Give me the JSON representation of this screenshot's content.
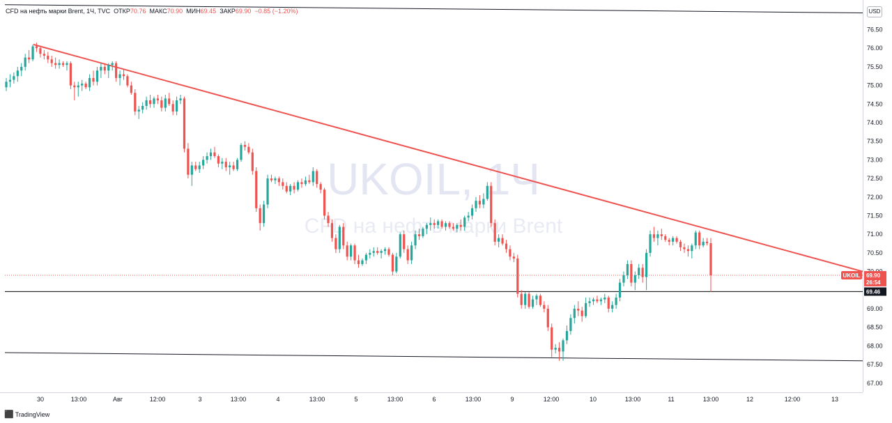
{
  "legend": {
    "title": "CFD на нефть марки Brent, 1Ч, TVC",
    "open_label": "ОТКР",
    "open": "70.76",
    "high_label": "МАКС",
    "high": "70.90",
    "low_label": "МИН",
    "low": "69.45",
    "close_label": "ЗАКР",
    "close": "69.90",
    "change": "−0.85 (−1.20%)"
  },
  "currency_button": "USD",
  "watermark": {
    "symbol": "UKOIL, 1Ч",
    "name": "CFD на нефть марки Brent"
  },
  "branding": "TradingView",
  "price_tags": {
    "symbol": "UKOIL",
    "last_price": "69.90",
    "countdown": "26:54",
    "level_price": "69.46"
  },
  "colors": {
    "up": "#26a69a",
    "down": "#ef5350",
    "trendline": "#ef5350",
    "level": "#000000"
  },
  "chart_data": {
    "type": "candlestick",
    "y_range": [
      66.7,
      77.1
    ],
    "y_ticks": [
      "76.50",
      "76.00",
      "75.50",
      "75.00",
      "74.50",
      "74.00",
      "73.50",
      "73.00",
      "72.50",
      "72.00",
      "71.50",
      "71.00",
      "70.50",
      "70.00",
      "69.50",
      "69.00",
      "68.50",
      "68.00",
      "67.50",
      "67.00"
    ],
    "x_ticks": [
      "30",
      "13:00",
      "Авг",
      "12:00",
      "3",
      "13:00",
      "4",
      "13:00",
      "5",
      "13:00",
      "6",
      "13:00",
      "9",
      "12:00",
      "10",
      "13:00",
      "11",
      "13:00",
      "12",
      "12:00",
      "13"
    ],
    "candles": [
      [
        74.95,
        75.2,
        74.85,
        75.1
      ],
      [
        75.1,
        75.3,
        74.95,
        75.15
      ],
      [
        75.15,
        75.35,
        75.05,
        75.25
      ],
      [
        75.25,
        75.5,
        75.1,
        75.4
      ],
      [
        75.4,
        75.6,
        75.25,
        75.5
      ],
      [
        75.5,
        75.85,
        75.4,
        75.75
      ],
      [
        75.75,
        75.95,
        75.6,
        75.7
      ],
      [
        75.7,
        76.1,
        75.65,
        76.05
      ],
      [
        76.05,
        76.15,
        75.9,
        76.0
      ],
      [
        76.0,
        76.05,
        75.75,
        75.85
      ],
      [
        75.85,
        75.95,
        75.7,
        75.8
      ],
      [
        75.8,
        75.9,
        75.6,
        75.7
      ],
      [
        75.7,
        75.8,
        75.5,
        75.6
      ],
      [
        75.6,
        75.75,
        75.45,
        75.55
      ],
      [
        75.55,
        75.7,
        75.45,
        75.6
      ],
      [
        75.6,
        75.65,
        75.5,
        75.55
      ],
      [
        75.55,
        75.65,
        75.4,
        75.6
      ],
      [
        75.6,
        75.65,
        74.9,
        75.0
      ],
      [
        75.0,
        75.1,
        74.6,
        74.95
      ],
      [
        74.95,
        75.1,
        74.7,
        75.0
      ],
      [
        75.0,
        75.15,
        74.85,
        75.05
      ],
      [
        75.05,
        75.1,
        74.9,
        74.95
      ],
      [
        74.95,
        75.3,
        74.85,
        75.2
      ],
      [
        75.2,
        75.4,
        75.0,
        75.1
      ],
      [
        75.1,
        75.5,
        75.0,
        75.4
      ],
      [
        75.4,
        75.6,
        75.2,
        75.5
      ],
      [
        75.5,
        75.6,
        75.3,
        75.4
      ],
      [
        75.4,
        75.6,
        75.2,
        75.55
      ],
      [
        75.55,
        75.65,
        75.4,
        75.6
      ],
      [
        75.6,
        75.65,
        75.1,
        75.2
      ],
      [
        75.2,
        75.4,
        75.0,
        75.3
      ],
      [
        75.3,
        75.45,
        75.15,
        75.25
      ],
      [
        75.25,
        75.3,
        74.95,
        75.0
      ],
      [
        75.0,
        75.1,
        74.75,
        74.8
      ],
      [
        74.8,
        74.9,
        74.2,
        74.3
      ],
      [
        74.3,
        74.45,
        74.1,
        74.35
      ],
      [
        74.35,
        74.55,
        74.25,
        74.45
      ],
      [
        74.45,
        74.7,
        74.35,
        74.6
      ],
      [
        74.6,
        74.75,
        74.4,
        74.5
      ],
      [
        74.5,
        74.7,
        74.4,
        74.65
      ],
      [
        74.65,
        74.75,
        74.5,
        74.6
      ],
      [
        74.6,
        74.7,
        74.3,
        74.4
      ],
      [
        74.4,
        74.75,
        74.3,
        74.65
      ],
      [
        74.65,
        74.8,
        74.45,
        74.5
      ],
      [
        74.5,
        74.6,
        74.2,
        74.3
      ],
      [
        74.3,
        74.7,
        74.2,
        74.6
      ],
      [
        74.6,
        74.75,
        74.5,
        74.65
      ],
      [
        74.65,
        74.7,
        73.2,
        73.3
      ],
      [
        73.3,
        73.45,
        72.5,
        72.6
      ],
      [
        72.6,
        72.95,
        72.3,
        72.85
      ],
      [
        72.85,
        72.95,
        72.7,
        72.75
      ],
      [
        72.75,
        72.95,
        72.65,
        72.85
      ],
      [
        72.85,
        73.1,
        72.75,
        73.0
      ],
      [
        73.0,
        73.2,
        72.9,
        73.1
      ],
      [
        73.1,
        73.3,
        73.0,
        73.2
      ],
      [
        73.2,
        73.35,
        73.05,
        73.1
      ],
      [
        73.1,
        73.15,
        72.8,
        72.9
      ],
      [
        72.9,
        73.05,
        72.75,
        72.95
      ],
      [
        72.95,
        73.05,
        72.7,
        72.8
      ],
      [
        72.8,
        72.95,
        72.6,
        72.85
      ],
      [
        72.85,
        72.95,
        72.7,
        72.75
      ],
      [
        72.75,
        73.05,
        72.7,
        73.0
      ],
      [
        73.0,
        73.45,
        72.95,
        73.4
      ],
      [
        73.4,
        73.5,
        73.25,
        73.35
      ],
      [
        73.35,
        73.45,
        73.15,
        73.2
      ],
      [
        73.2,
        73.3,
        72.6,
        72.7
      ],
      [
        72.7,
        72.8,
        71.6,
        71.7
      ],
      [
        71.7,
        71.8,
        71.1,
        71.3
      ],
      [
        71.3,
        71.9,
        71.2,
        71.8
      ],
      [
        71.8,
        72.6,
        71.7,
        72.5
      ],
      [
        72.5,
        72.6,
        72.4,
        72.45
      ],
      [
        72.45,
        72.55,
        72.35,
        72.5
      ],
      [
        72.5,
        72.55,
        72.3,
        72.4
      ],
      [
        72.4,
        72.5,
        72.2,
        72.3
      ],
      [
        72.3,
        72.4,
        72.1,
        72.15
      ],
      [
        72.15,
        72.35,
        72.05,
        72.3
      ],
      [
        72.3,
        72.4,
        72.1,
        72.2
      ],
      [
        72.2,
        72.45,
        72.15,
        72.4
      ],
      [
        72.4,
        72.5,
        72.25,
        72.35
      ],
      [
        72.35,
        72.55,
        72.3,
        72.45
      ],
      [
        72.45,
        72.6,
        72.35,
        72.4
      ],
      [
        72.4,
        72.8,
        72.3,
        72.7
      ],
      [
        72.7,
        72.75,
        72.25,
        72.35
      ],
      [
        72.35,
        72.4,
        72.1,
        72.2
      ],
      [
        72.2,
        72.25,
        71.4,
        71.5
      ],
      [
        71.5,
        71.6,
        71.2,
        71.3
      ],
      [
        71.3,
        71.4,
        70.8,
        70.9
      ],
      [
        70.9,
        71.0,
        70.5,
        70.6
      ],
      [
        70.6,
        71.25,
        70.5,
        71.2
      ],
      [
        71.2,
        71.3,
        70.6,
        70.7
      ],
      [
        70.7,
        70.8,
        70.3,
        70.4
      ],
      [
        70.4,
        70.75,
        70.3,
        70.7
      ],
      [
        70.7,
        70.75,
        70.2,
        70.3
      ],
      [
        70.3,
        70.45,
        70.1,
        70.2
      ],
      [
        70.2,
        70.35,
        70.15,
        70.3
      ],
      [
        70.3,
        70.5,
        70.2,
        70.45
      ],
      [
        70.45,
        70.6,
        70.35,
        70.5
      ],
      [
        70.5,
        70.65,
        70.4,
        70.55
      ],
      [
        70.55,
        70.65,
        70.45,
        70.5
      ],
      [
        70.5,
        70.6,
        70.35,
        70.55
      ],
      [
        70.55,
        70.65,
        70.45,
        70.6
      ],
      [
        70.6,
        70.65,
        70.4,
        70.45
      ],
      [
        70.45,
        70.5,
        69.9,
        70.0
      ],
      [
        70.0,
        70.5,
        69.95,
        70.4
      ],
      [
        70.4,
        71.05,
        70.35,
        71.0
      ],
      [
        71.0,
        71.1,
        70.5,
        70.6
      ],
      [
        70.6,
        70.7,
        70.2,
        70.3
      ],
      [
        70.3,
        70.8,
        70.2,
        70.7
      ],
      [
        70.7,
        71.1,
        70.6,
        71.0
      ],
      [
        71.0,
        71.15,
        70.85,
        70.95
      ],
      [
        70.95,
        71.2,
        70.9,
        71.15
      ],
      [
        71.15,
        71.3,
        71.0,
        71.25
      ],
      [
        71.25,
        71.45,
        71.1,
        71.3
      ],
      [
        71.3,
        71.4,
        71.15,
        71.25
      ],
      [
        71.25,
        71.4,
        71.15,
        71.35
      ],
      [
        71.35,
        71.4,
        71.15,
        71.2
      ],
      [
        71.2,
        71.35,
        71.1,
        71.3
      ],
      [
        71.3,
        71.35,
        71.15,
        71.2
      ],
      [
        71.2,
        71.3,
        71.1,
        71.15
      ],
      [
        71.15,
        71.3,
        71.05,
        71.25
      ],
      [
        71.25,
        71.4,
        71.1,
        71.2
      ],
      [
        71.2,
        71.5,
        71.1,
        71.45
      ],
      [
        71.45,
        71.6,
        71.35,
        71.5
      ],
      [
        71.5,
        71.8,
        71.4,
        71.7
      ],
      [
        71.7,
        72.0,
        71.6,
        71.9
      ],
      [
        71.9,
        72.05,
        71.7,
        71.8
      ],
      [
        71.8,
        72.1,
        71.7,
        71.95
      ],
      [
        71.95,
        72.4,
        71.9,
        72.3
      ],
      [
        72.3,
        72.4,
        71.2,
        71.3
      ],
      [
        71.3,
        71.4,
        70.7,
        70.8
      ],
      [
        70.8,
        71.0,
        70.65,
        70.9
      ],
      [
        70.9,
        71.0,
        70.7,
        70.75
      ],
      [
        70.75,
        70.85,
        70.5,
        70.6
      ],
      [
        70.6,
        70.7,
        70.3,
        70.4
      ],
      [
        70.4,
        70.5,
        70.25,
        70.35
      ],
      [
        70.35,
        70.45,
        69.3,
        69.4
      ],
      [
        69.4,
        69.5,
        69.0,
        69.1
      ],
      [
        69.1,
        69.45,
        69.0,
        69.4
      ],
      [
        69.4,
        69.45,
        69.0,
        69.05
      ],
      [
        69.05,
        69.35,
        69.0,
        69.25
      ],
      [
        69.25,
        69.4,
        69.1,
        69.35
      ],
      [
        69.35,
        69.4,
        69.05,
        69.1
      ],
      [
        69.1,
        69.2,
        68.9,
        69.0
      ],
      [
        69.0,
        69.1,
        68.4,
        68.5
      ],
      [
        68.5,
        68.6,
        67.7,
        67.9
      ],
      [
        67.9,
        68.05,
        67.8,
        67.95
      ],
      [
        67.95,
        68.1,
        67.6,
        67.85
      ],
      [
        67.85,
        68.2,
        67.6,
        68.15
      ],
      [
        68.15,
        68.55,
        68.05,
        68.4
      ],
      [
        68.4,
        68.85,
        68.3,
        68.75
      ],
      [
        68.75,
        69.1,
        68.6,
        69.0
      ],
      [
        69.0,
        69.2,
        68.8,
        68.95
      ],
      [
        68.95,
        69.05,
        68.65,
        68.8
      ],
      [
        68.8,
        69.3,
        68.75,
        69.15
      ],
      [
        69.15,
        69.3,
        69.05,
        69.2
      ],
      [
        69.2,
        69.3,
        69.1,
        69.25
      ],
      [
        69.25,
        69.35,
        69.15,
        69.2
      ],
      [
        69.2,
        69.3,
        69.1,
        69.25
      ],
      [
        69.25,
        69.4,
        69.15,
        69.3
      ],
      [
        69.3,
        69.35,
        68.9,
        69.0
      ],
      [
        69.0,
        69.2,
        68.9,
        69.1
      ],
      [
        69.1,
        69.4,
        69.0,
        69.3
      ],
      [
        69.3,
        69.8,
        69.2,
        69.7
      ],
      [
        69.7,
        70.0,
        69.6,
        69.9
      ],
      [
        69.9,
        70.3,
        69.8,
        70.2
      ],
      [
        70.2,
        70.3,
        69.6,
        69.7
      ],
      [
        69.7,
        70.0,
        69.5,
        69.9
      ],
      [
        69.9,
        70.2,
        69.8,
        70.1
      ],
      [
        70.1,
        70.2,
        69.7,
        69.85
      ],
      [
        69.85,
        70.6,
        69.5,
        70.5
      ],
      [
        70.5,
        71.1,
        70.4,
        71.0
      ],
      [
        71.0,
        71.2,
        70.8,
        70.9
      ],
      [
        70.9,
        71.1,
        70.7,
        71.0
      ],
      [
        71.0,
        71.15,
        70.85,
        70.95
      ],
      [
        70.95,
        71.0,
        70.8,
        70.85
      ],
      [
        70.85,
        70.9,
        70.7,
        70.8
      ],
      [
        70.8,
        70.95,
        70.7,
        70.9
      ],
      [
        70.9,
        70.95,
        70.75,
        70.8
      ],
      [
        70.8,
        70.85,
        70.55,
        70.65
      ],
      [
        70.65,
        70.75,
        70.5,
        70.6
      ],
      [
        70.6,
        70.7,
        70.4,
        70.55
      ],
      [
        70.55,
        70.75,
        70.35,
        70.7
      ],
      [
        70.7,
        71.1,
        70.6,
        71.05
      ],
      [
        71.05,
        71.1,
        70.6,
        70.7
      ],
      [
        70.7,
        70.9,
        70.65,
        70.8
      ],
      [
        70.8,
        70.9,
        70.7,
        70.76
      ],
      [
        70.76,
        70.9,
        69.45,
        69.9
      ]
    ],
    "annotations": {
      "trendline": [
        [
          76.1,
          70.0
        ]
      ],
      "support_level": 69.46,
      "lower_channel": [
        67.82,
        67.6
      ],
      "upper_channel": [
        77.17,
        76.95
      ]
    },
    "last_price": 69.9
  }
}
